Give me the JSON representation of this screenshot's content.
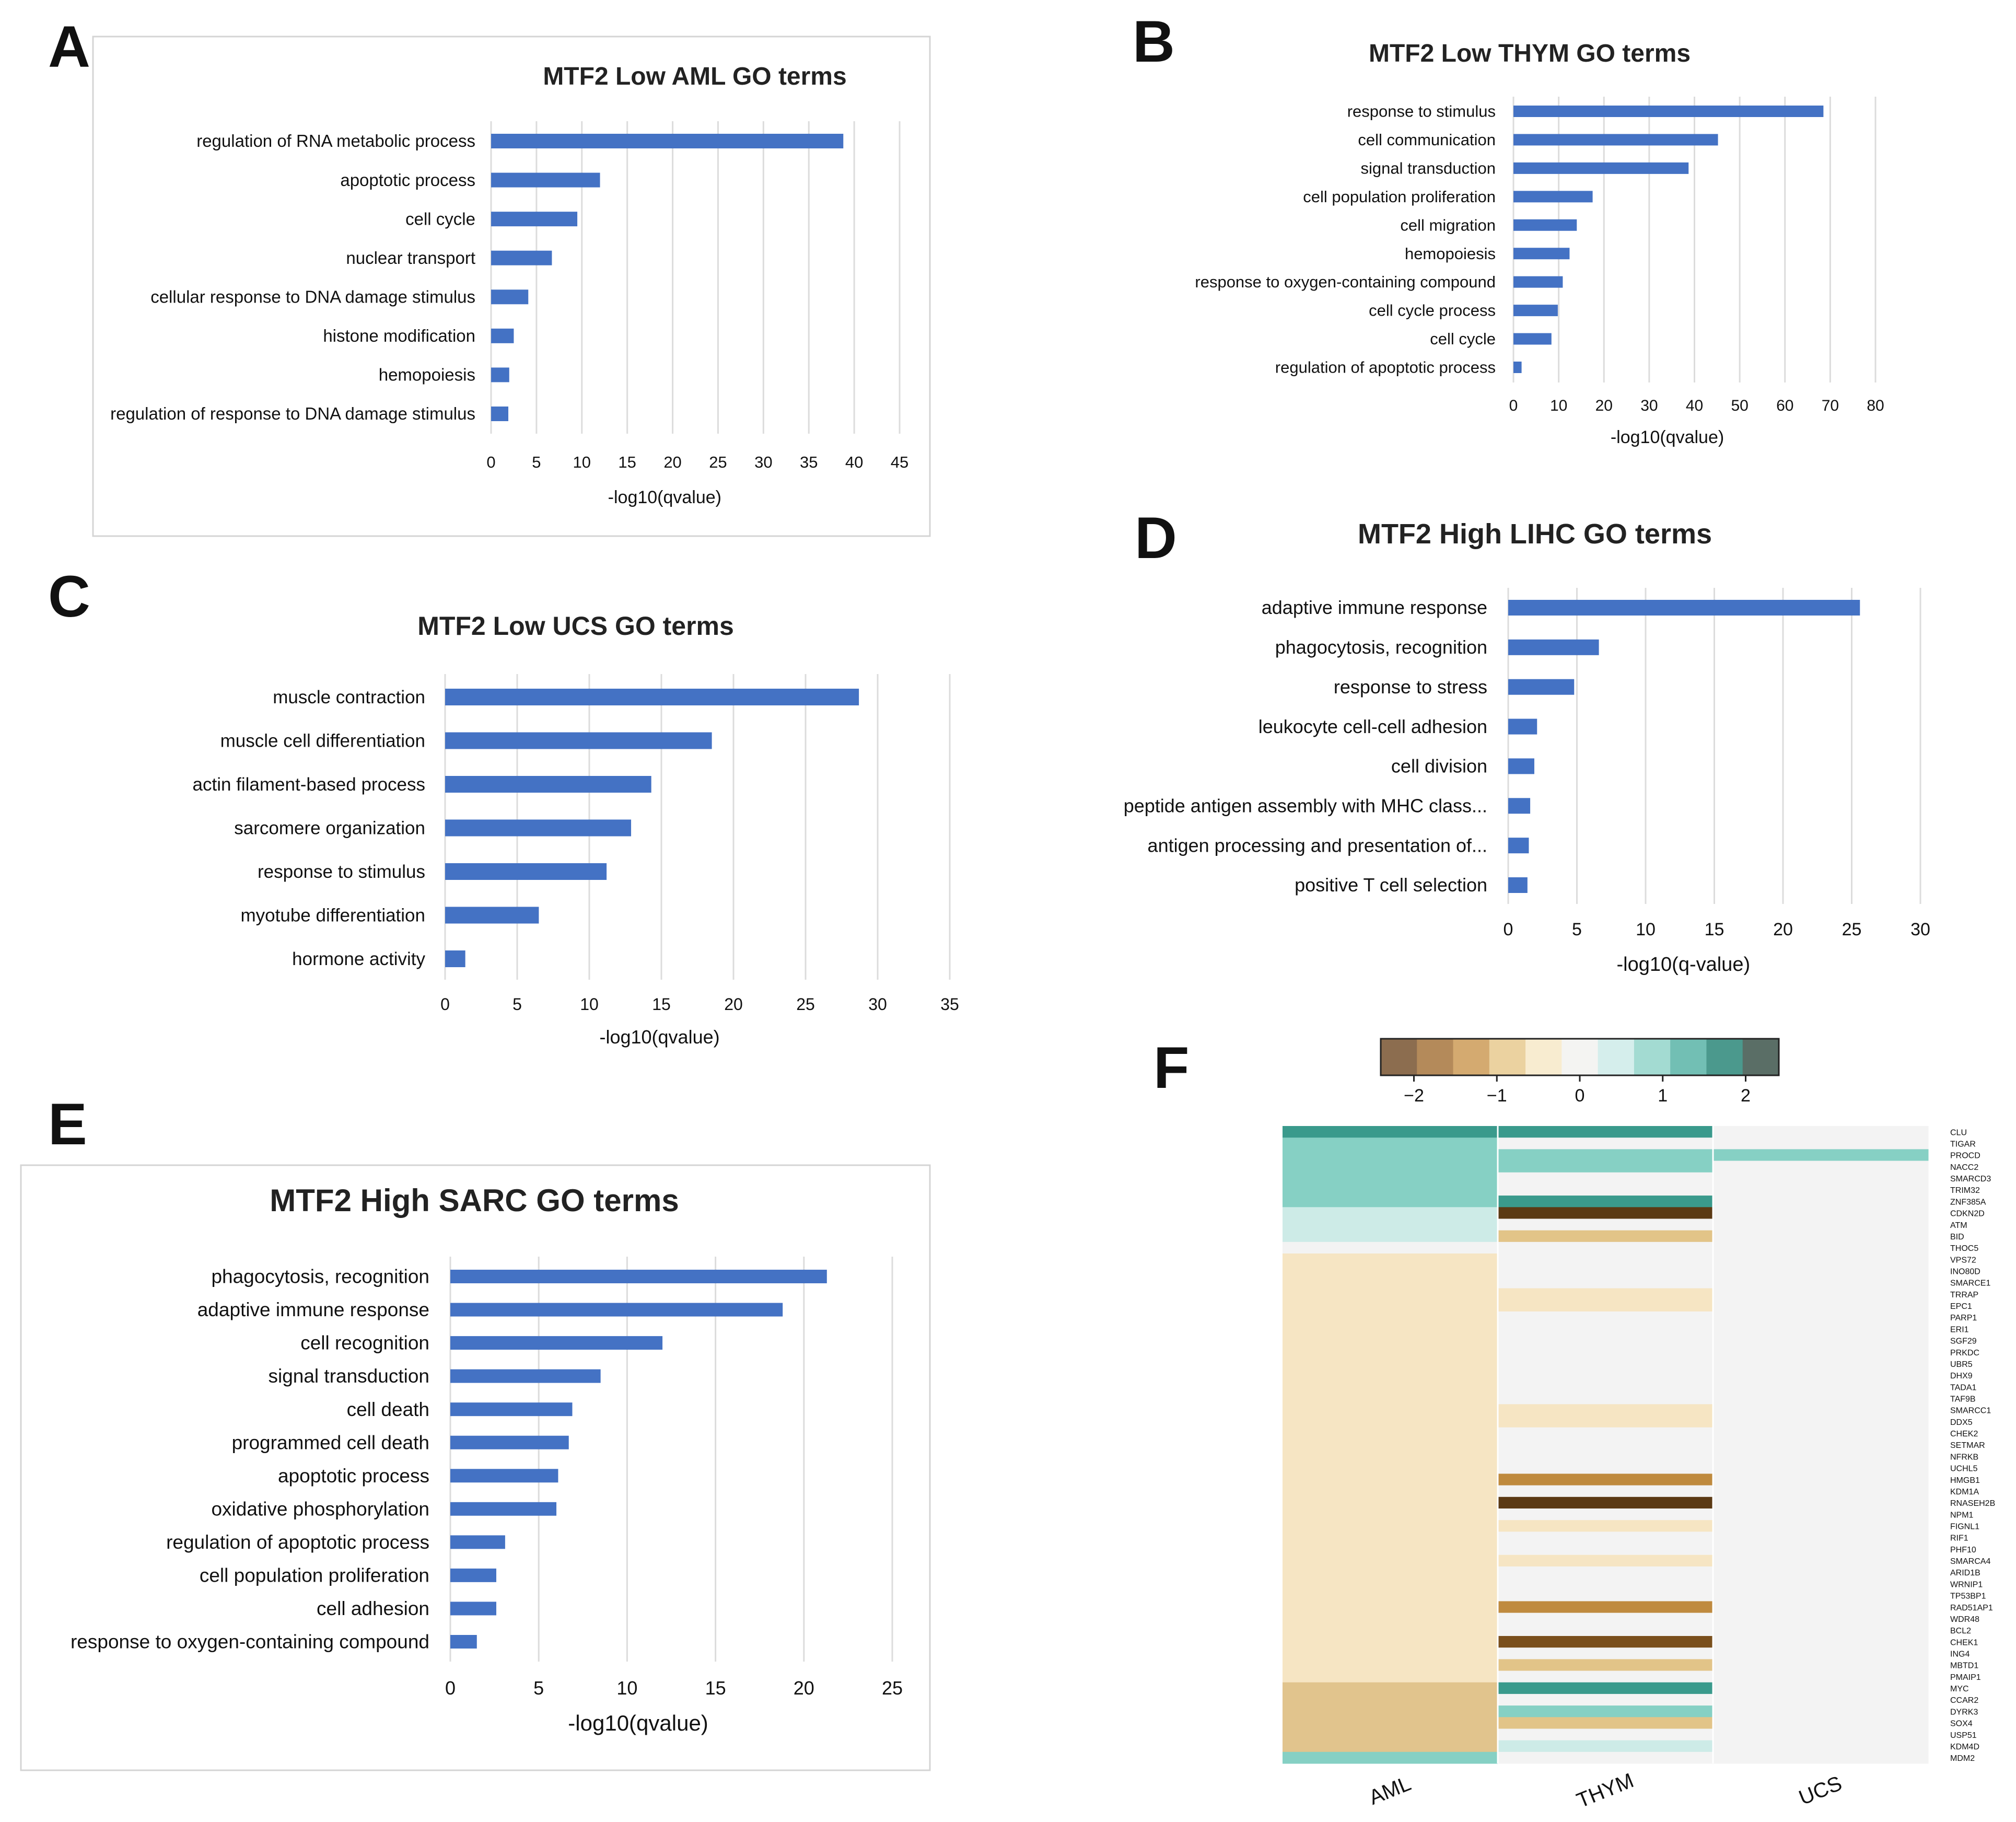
{
  "panel_labels": [
    "A",
    "B",
    "C",
    "D",
    "E",
    "F"
  ],
  "chart_data": [
    {
      "id": "A",
      "type": "bar",
      "orientation": "horizontal",
      "title": "MTF2 Low AML GO terms",
      "xlabel": "-log10(qvalue)",
      "ylabel": "",
      "xlim": [
        0,
        45
      ],
      "xticks": [
        0,
        5,
        10,
        15,
        20,
        25,
        30,
        35,
        40,
        45
      ],
      "categories": [
        "regulation of RNA metabolic process",
        "apoptotic process",
        "cell cycle",
        "nuclear transport",
        "cellular response to DNA damage stimulus",
        "histone modification",
        "hemopoiesis",
        "regulation of response to DNA damage stimulus"
      ],
      "values": [
        38.8,
        12.0,
        9.5,
        6.7,
        4.1,
        2.5,
        2.0,
        1.9
      ]
    },
    {
      "id": "B",
      "type": "bar",
      "orientation": "horizontal",
      "title": "MTF2 Low THYM GO terms",
      "xlabel": "-log10(qvalue)",
      "ylabel": "",
      "xlim": [
        0,
        80
      ],
      "xticks": [
        0,
        10,
        20,
        30,
        40,
        50,
        60,
        70,
        80
      ],
      "categories": [
        "response to stimulus",
        "cell communication",
        "signal transduction",
        "cell population proliferation",
        "cell migration",
        "hemopoiesis",
        "response to oxygen-containing compound",
        "cell cycle process",
        "cell cycle",
        "regulation of apoptotic process"
      ],
      "values": [
        68.5,
        45.2,
        38.7,
        17.5,
        14.0,
        12.4,
        10.9,
        9.8,
        8.4,
        1.8
      ]
    },
    {
      "id": "C",
      "type": "bar",
      "orientation": "horizontal",
      "title": "MTF2 Low UCS GO terms",
      "xlabel": "-log10(qvalue)",
      "ylabel": "",
      "xlim": [
        0,
        35
      ],
      "xticks": [
        0,
        5,
        10,
        15,
        20,
        25,
        30,
        35
      ],
      "categories": [
        "muscle contraction",
        "muscle cell differentiation",
        "actin filament-based process",
        "sarcomere organization",
        "response to stimulus",
        "myotube differentiation",
        "hormone activity"
      ],
      "values": [
        28.7,
        18.5,
        14.3,
        12.9,
        11.2,
        6.5,
        1.4
      ]
    },
    {
      "id": "D",
      "type": "bar",
      "orientation": "horizontal",
      "title": "MTF2  High LIHC GO terms",
      "xlabel": "-log10(q-value)",
      "ylabel": "",
      "xlim": [
        0,
        30
      ],
      "xticks": [
        0,
        5,
        10,
        15,
        20,
        25,
        30
      ],
      "categories": [
        "adaptive immune response",
        "phagocytosis, recognition",
        "response to stress",
        "leukocyte cell-cell adhesion",
        "cell division",
        "peptide antigen assembly with MHC class...",
        "antigen processing and presentation of...",
        "positive T cell selection"
      ],
      "values": [
        25.6,
        6.6,
        4.8,
        2.1,
        1.9,
        1.6,
        1.5,
        1.4
      ]
    },
    {
      "id": "E",
      "type": "bar",
      "orientation": "horizontal",
      "title": "MTF2 High SARC GO terms",
      "xlabel": "-log10(qvalue)",
      "ylabel": "",
      "xlim": [
        0,
        25
      ],
      "xticks": [
        0,
        5,
        10,
        15,
        20,
        25
      ],
      "categories": [
        "phagocytosis, recognition",
        "adaptive immune response",
        "cell recognition",
        "signal transduction",
        "cell death",
        "programmed cell death",
        "apoptotic process",
        "oxidative phosphorylation",
        "regulation of apoptotic process",
        "cell population proliferation",
        "cell adhesion",
        "response to oxygen-containing compound"
      ],
      "values": [
        21.3,
        18.8,
        12.0,
        8.5,
        6.9,
        6.7,
        6.1,
        6.0,
        3.1,
        2.6,
        2.6,
        1.5
      ]
    },
    {
      "id": "F",
      "type": "heatmap",
      "columns": [
        "AML",
        "THYM",
        "UCS"
      ],
      "colorbar": {
        "ticks": [
          -2,
          -1,
          0,
          1,
          2
        ],
        "range": [
          -2.4,
          2.4
        ],
        "colors": [
          "#8C6D4F",
          "#B48A5A",
          "#D4AA70",
          "#EBD2A0",
          "#F8ECD0",
          "#F4F4F2",
          "#D5EEEC",
          "#A3DBD2",
          "#72BFB4",
          "#4B998D",
          "#5A6E66"
        ]
      },
      "genes": [
        "CLU",
        "TIGAR",
        "PROCD",
        "NACC2",
        "SMARCD3",
        "TRIM32",
        "ZNF385A",
        "CDKN2D",
        "ATM",
        "BID",
        "THOC5",
        "VPS72",
        "INO80D",
        "SMARCE1",
        "TRRAP",
        "EPC1",
        "PARP1",
        "ERI1",
        "SGF29",
        "PRKDC",
        "UBR5",
        "DHX9",
        "TADA1",
        "TAF9B",
        "SMARCC1",
        "DDX5",
        "CHEK2",
        "SETMAR",
        "NFRKB",
        "UCHL5",
        "HMGB1",
        "KDM1A",
        "RNASEH2B",
        "NPM1",
        "FIGNL1",
        "RIF1",
        "PHF10",
        "SMARCA4",
        "ARID1B",
        "WRNIP1",
        "TP53BP1",
        "RAD51AP1",
        "WDR48",
        "BCL2",
        "CHEK1",
        "ING4",
        "MBTD1",
        "PMAIP1",
        "MYC",
        "CCAR2",
        "DYRK3",
        "SOX4",
        "USP51",
        "KDM4D",
        "MDM2"
      ],
      "AML": [
        1.55,
        1.1,
        1.1,
        1.1,
        1.1,
        1.1,
        1.1,
        0.6,
        0.6,
        0.6,
        0,
        -0.5,
        -0.5,
        -0.5,
        -0.5,
        -0.5,
        -0.5,
        -0.5,
        -0.5,
        -0.5,
        -0.5,
        -0.5,
        -0.5,
        -0.5,
        -0.5,
        -0.5,
        -0.5,
        -0.5,
        -0.5,
        -0.5,
        -0.5,
        -0.5,
        -0.5,
        -0.5,
        -0.5,
        -0.5,
        -0.5,
        -0.5,
        -0.5,
        -0.5,
        -0.5,
        -0.5,
        -0.5,
        -0.5,
        -0.5,
        -0.5,
        -0.5,
        -0.5,
        -1.1,
        -1.1,
        -1.1,
        -1.1,
        -1.1,
        -1.1,
        1.1
      ],
      "THYM": [
        1.6,
        0,
        1.1,
        1.1,
        0,
        0,
        1.6,
        -2.6,
        0,
        -0.9,
        0,
        0,
        0,
        0,
        -0.5,
        -0.5,
        0,
        0,
        0,
        0,
        0,
        0,
        0,
        0,
        -0.5,
        -0.5,
        0,
        0,
        0,
        0,
        -1.6,
        0,
        -2.6,
        0,
        -0.5,
        0,
        0,
        -0.5,
        0,
        0,
        0,
        -1.6,
        0,
        0,
        -2.3,
        0,
        -0.9,
        0,
        1.6,
        0,
        1.1,
        -0.9,
        0,
        0.5,
        0
      ],
      "UCS": [
        0,
        0,
        1.1,
        0,
        0,
        0,
        0,
        0,
        0,
        0,
        0,
        0,
        0,
        0,
        0,
        0,
        0,
        0,
        0,
        0,
        0,
        0,
        0,
        0,
        0,
        0,
        0,
        0,
        0,
        0,
        0,
        0,
        0,
        0,
        0,
        0,
        0,
        0,
        0,
        0,
        0,
        0,
        0,
        0,
        0,
        0,
        0,
        0,
        0,
        0,
        0,
        0,
        0,
        0,
        0
      ]
    }
  ]
}
